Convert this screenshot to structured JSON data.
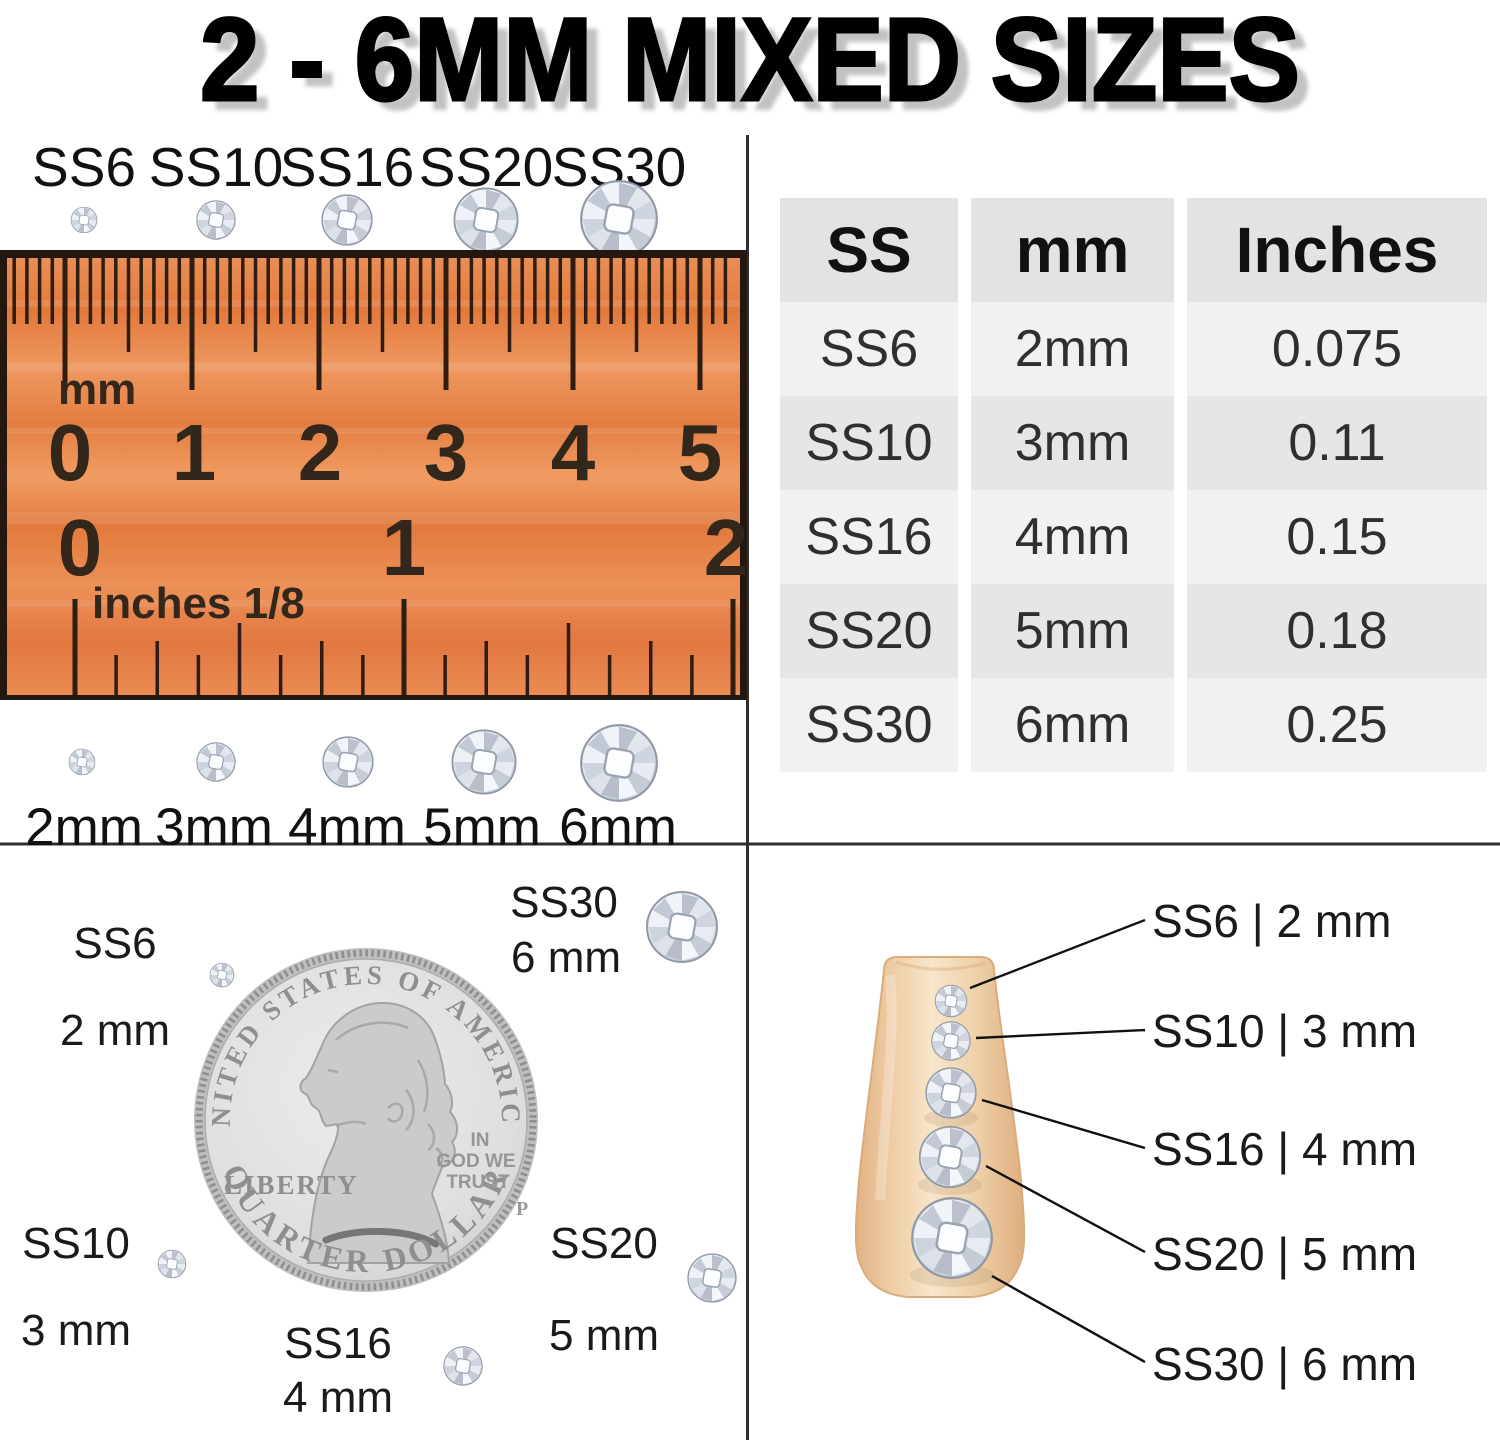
{
  "title": "2 - 6MM MIXED SIZES",
  "top_left": {
    "ss_labels": [
      "SS6",
      "SS10",
      "SS16",
      "SS20",
      "SS30"
    ],
    "mm_labels": [
      "2mm",
      "3mm",
      "4mm",
      "5mm",
      "6mm"
    ],
    "ruler": {
      "unit_mm": "mm",
      "mm_numbers": [
        "0",
        "1",
        "2",
        "3",
        "4",
        "5"
      ],
      "inch_numbers": [
        "0",
        "1",
        "2"
      ],
      "unit_inch": "inches 1/8"
    }
  },
  "table": {
    "headers": [
      "SS",
      "mm",
      "Inches"
    ],
    "rows": [
      {
        "ss": "SS6",
        "mm": "2mm",
        "inches": "0.075"
      },
      {
        "ss": "SS10",
        "mm": "3mm",
        "inches": "0.11"
      },
      {
        "ss": "SS16",
        "mm": "4mm",
        "inches": "0.15"
      },
      {
        "ss": "SS20",
        "mm": "5mm",
        "inches": "0.18"
      },
      {
        "ss": "SS30",
        "mm": "6mm",
        "inches": "0.25"
      }
    ]
  },
  "coin_section": {
    "labels": [
      {
        "ss": "SS6",
        "size": "2 mm"
      },
      {
        "ss": "SS30",
        "size": "6 mm"
      },
      {
        "ss": "SS10",
        "size": "3 mm"
      },
      {
        "ss": "SS20",
        "size": "5 mm"
      },
      {
        "ss": "SS16",
        "size": "4 mm"
      }
    ],
    "coin": {
      "top": "UNITED STATES OF AMERICA",
      "liberty": "LIBERTY",
      "motto_1": "IN",
      "motto_2": "GOD WE",
      "motto_3": "TRUST",
      "mint": "P",
      "bottom": "QUARTER DOLLAR"
    }
  },
  "nail_section": {
    "labels": [
      "SS6 | 2 mm",
      "SS10 | 3 mm",
      "SS16 | 4 mm",
      "SS20 | 5 mm",
      "SS30 | 6 mm"
    ]
  },
  "colors": {
    "ruler_orange": "#e8813f",
    "tick_brown": "#2e1d10",
    "table_header_bg": "#e3e3e3",
    "table_row_light": "#f1f1f1",
    "table_row_dark": "#e6e6e6",
    "nail_tan": "#f2d7ae",
    "crystal_gray": "#ccd2dc",
    "divider_gray": "#2f2f2f"
  }
}
